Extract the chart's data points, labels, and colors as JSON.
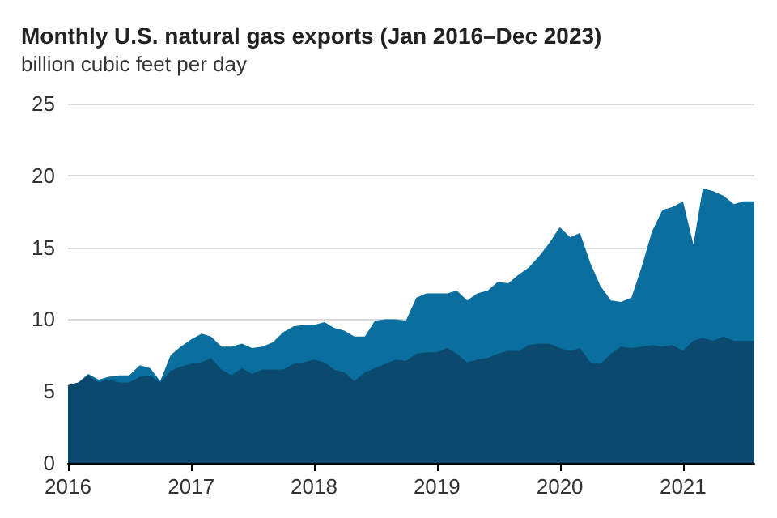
{
  "chart_data": {
    "type": "area",
    "title": "Monthly U.S. natural gas exports (Jan 2016–Dec 2023)",
    "ylabel": "billion cubic feet per day",
    "x": [
      "2016-01",
      "2016-02",
      "2016-03",
      "2016-04",
      "2016-05",
      "2016-06",
      "2016-07",
      "2016-08",
      "2016-09",
      "2016-10",
      "2016-11",
      "2016-12",
      "2017-01",
      "2017-02",
      "2017-03",
      "2017-04",
      "2017-05",
      "2017-06",
      "2017-07",
      "2017-08",
      "2017-09",
      "2017-10",
      "2017-11",
      "2017-12",
      "2018-01",
      "2018-02",
      "2018-03",
      "2018-04",
      "2018-05",
      "2018-06",
      "2018-07",
      "2018-08",
      "2018-09",
      "2018-10",
      "2018-11",
      "2018-12",
      "2019-01",
      "2019-02",
      "2019-03",
      "2019-04",
      "2019-05",
      "2019-06",
      "2019-07",
      "2019-08",
      "2019-09",
      "2019-10",
      "2019-11",
      "2019-12",
      "2020-01",
      "2020-02",
      "2020-03",
      "2020-04",
      "2020-05",
      "2020-06",
      "2020-07",
      "2020-08",
      "2020-09",
      "2020-10",
      "2020-11",
      "2020-12",
      "2021-01",
      "2021-02",
      "2021-03",
      "2021-04",
      "2021-05",
      "2021-06",
      "2021-07",
      "2021-08"
    ],
    "stacked": true,
    "series": [
      {
        "color": "#0b4a6e",
        "values": [
          5.4,
          5.6,
          6.1,
          5.6,
          5.8,
          5.6,
          5.6,
          6.0,
          6.1,
          5.6,
          6.4,
          6.7,
          6.9,
          7.0,
          7.3,
          6.5,
          6.1,
          6.6,
          6.2,
          6.5,
          6.5,
          6.5,
          6.9,
          7.0,
          7.2,
          7.0,
          6.5,
          6.3,
          5.7,
          6.3,
          6.6,
          6.9,
          7.2,
          7.1,
          7.6,
          7.7,
          7.7,
          8.0,
          7.6,
          7.0,
          7.2,
          7.3,
          7.6,
          7.8,
          7.8,
          8.2,
          8.3,
          8.3,
          8.0,
          7.8,
          8.0,
          7.0,
          6.9,
          7.6,
          8.1,
          8.0,
          8.1,
          8.2,
          8.1,
          8.2,
          7.8,
          8.5,
          8.7,
          8.5,
          8.8,
          8.5,
          8.5,
          8.5
        ]
      },
      {
        "color": "#0a6e9e",
        "values": [
          0,
          0,
          0.1,
          0.2,
          0.2,
          0.5,
          0.5,
          0.8,
          0.5,
          0.1,
          1.1,
          1.4,
          1.7,
          2.0,
          1.5,
          1.6,
          2.0,
          1.7,
          1.8,
          1.6,
          1.9,
          2.6,
          2.6,
          2.6,
          2.4,
          2.8,
          2.9,
          2.9,
          3.1,
          2.5,
          3.3,
          3.1,
          2.8,
          2.8,
          3.9,
          4.1,
          4.1,
          3.8,
          4.4,
          4.3,
          4.6,
          4.7,
          5.0,
          4.7,
          5.3,
          5.4,
          6.1,
          7.0,
          8.4,
          7.9,
          8.0,
          6.9,
          5.4,
          3.7,
          3.1,
          3.5,
          5.6,
          7.9,
          9.5,
          9.6,
          10.4,
          6.7,
          10.4,
          10.4,
          9.8,
          9.5,
          9.7,
          9.7
        ]
      }
    ],
    "xlim": [
      "2016-01",
      "2021-08"
    ],
    "xticks": [
      "2016",
      "2017",
      "2018",
      "2019",
      "2020",
      "2021"
    ],
    "ylim": [
      0,
      25
    ],
    "yticks": [
      0,
      5,
      10,
      15,
      20,
      25
    ],
    "grid": "y"
  }
}
